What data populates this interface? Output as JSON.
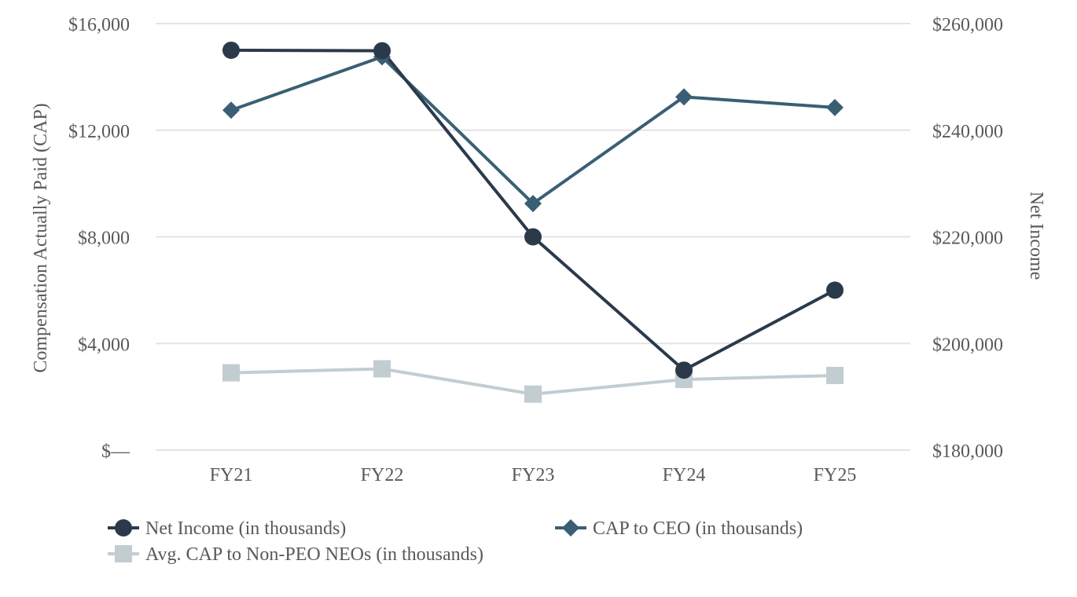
{
  "chart_data": {
    "type": "line",
    "categories": [
      "FY21",
      "FY22",
      "FY23",
      "FY24",
      "FY25"
    ],
    "y_left": {
      "label": "Compensation Actually Paid (CAP)",
      "range": [
        0,
        16000
      ],
      "ticks": [
        0,
        4000,
        8000,
        12000,
        16000
      ],
      "tick_labels": [
        "$—",
        "$4,000",
        "$8,000",
        "$12,000",
        "$16,000"
      ]
    },
    "y_right": {
      "label": "Net Income",
      "range": [
        180000,
        260000
      ],
      "ticks": [
        180000,
        200000,
        220000,
        240000,
        260000
      ],
      "tick_labels": [
        "$180,000",
        "$200,000",
        "$220,000",
        "$240,000",
        "$260,000"
      ]
    },
    "series": [
      {
        "name": "Net Income (in thousands)",
        "axis": "right",
        "marker": "circle",
        "color": "#2b3a4a",
        "values": [
          255000,
          254900,
          220000,
          195000,
          210000
        ]
      },
      {
        "name": "CAP to CEO (in thousands)",
        "axis": "left",
        "marker": "diamond",
        "color": "#3a5f75",
        "values": [
          12750,
          14750,
          9250,
          13250,
          12850
        ]
      },
      {
        "name": "Avg. CAP to Non-PEO NEOs (in thousands)",
        "axis": "left",
        "marker": "square",
        "color": "#c2cdd2",
        "values": [
          2900,
          3050,
          2100,
          2650,
          2800
        ]
      }
    ],
    "grid": true,
    "legend_position": "bottom"
  }
}
